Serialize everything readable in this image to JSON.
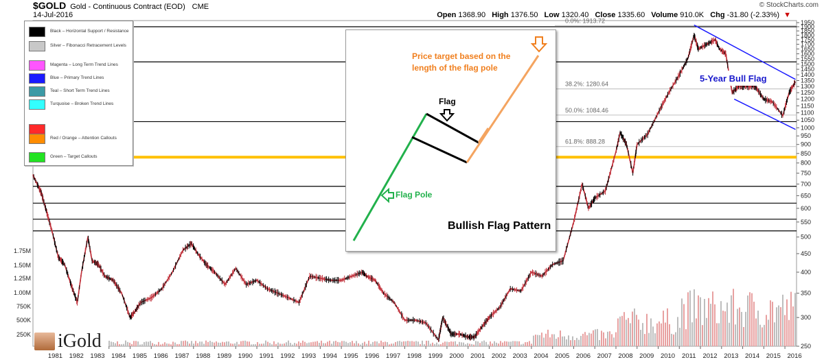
{
  "header": {
    "symbol": "$GOLD",
    "description": "Gold - Continuous Contract (EOD)",
    "exchange": "CME",
    "date": "14-Jul-2016",
    "brand": "© StockCharts.com",
    "ohlc": [
      {
        "label": "Open",
        "value": "1368.90"
      },
      {
        "label": "High",
        "value": "1376.50"
      },
      {
        "label": "Low",
        "value": "1320.40"
      },
      {
        "label": "Close",
        "value": "1335.60"
      },
      {
        "label": "Volume",
        "value": "910.0K"
      },
      {
        "label": "Chg",
        "value": "-31.80 (-2.33%)"
      }
    ]
  },
  "legend": [
    {
      "color": "#000000",
      "label": "Black – Horizontal Support / Resistance"
    },
    {
      "color": "#c8c8c8",
      "label": "Silver – Fibonacci Retracement Levels"
    },
    {
      "color": "#ff55ff",
      "label": "Magenta – Long Term Trend Lines"
    },
    {
      "color": "#1a1aff",
      "label": "Blue – Primary Trend Lines"
    },
    {
      "color": "#3c9aa6",
      "label": "Teal – Short Term Trend Lines"
    },
    {
      "color": "#33ffff",
      "label": "Turquoise – Broken Trend Lines"
    },
    {
      "color": "#ff2a2a",
      "label": "Red / Orange – Attention Callouts"
    },
    {
      "color": "#ff8c00",
      "label": "Orange"
    },
    {
      "color": "#22e322",
      "label": "Green – Target Callouts"
    }
  ],
  "logo": {
    "name": "iGold"
  },
  "inset": {
    "title": "Bullish Flag Pattern",
    "flag_label": "Flag",
    "pole_label": "Flag Pole",
    "target_label_1": "Price target based on the",
    "target_label_2": "length of the flag pole"
  },
  "annotations": {
    "bull_flag": "5-Year Bull Flag"
  },
  "chart_data": {
    "type": "line",
    "title": "$GOLD Gold - Continuous Contract (EOD) CME",
    "y_scale": "log",
    "ylim": [
      250,
      1950
    ],
    "y_ticks": [
      1950,
      1900,
      1850,
      1800,
      1750,
      1700,
      1650,
      1600,
      1550,
      1500,
      1450,
      1400,
      1350,
      1300,
      1250,
      1200,
      1150,
      1100,
      1050,
      1000,
      950,
      900,
      850,
      800,
      750,
      700,
      650,
      600,
      550,
      500,
      450,
      400,
      350,
      300,
      250
    ],
    "x_ticks": [
      "1981",
      "1982",
      "1983",
      "1984",
      "1985",
      "1986",
      "1987",
      "1988",
      "1989",
      "1990",
      "1991",
      "1992",
      "1993",
      "1994",
      "1995",
      "1996",
      "1997",
      "1998",
      "1999",
      "2000",
      "2001",
      "2002",
      "2003",
      "2004",
      "2005",
      "2006",
      "2007",
      "2008",
      "2009",
      "2010",
      "2011",
      "2012",
      "2013",
      "2014",
      "2015",
      "2016"
    ],
    "volume_ticks": [
      "1.75M",
      "1.50M",
      "1.25M",
      "1.00M",
      "750K",
      "500K",
      "250K"
    ],
    "fib_levels": [
      {
        "label": "0.0%: 1913.72",
        "value": 1913.72
      },
      {
        "label": "38.2%: 1280.64",
        "value": 1280.64
      },
      {
        "label": "50.0%: 1084.46",
        "value": 1084.46
      },
      {
        "label": "61.8%: 888.28",
        "value": 888.28
      }
    ],
    "support_levels": [
      1900,
      1520,
      1040,
      690,
      620,
      560,
      520
    ],
    "gold_level": 830,
    "series": [
      {
        "name": "Gold",
        "x": [
          1980.4,
          1980.6,
          1980.8,
          1981.0,
          1981.3,
          1981.6,
          1981.9,
          1982.2,
          1982.5,
          1982.7,
          1983.0,
          1983.2,
          1983.5,
          1983.8,
          1984.2,
          1984.6,
          1985.0,
          1985.2,
          1985.5,
          1986.0,
          1986.5,
          1987.0,
          1987.5,
          1987.9,
          1988.2,
          1988.6,
          1989.0,
          1989.5,
          1990.0,
          1990.5,
          1991.0,
          1991.5,
          1992.0,
          1992.5,
          1993.0,
          1993.5,
          1994.0,
          1994.5,
          1995.0,
          1995.5,
          1996.0,
          1996.2,
          1996.6,
          1997.0,
          1997.5,
          1998.0,
          1998.5,
          1999.0,
          1999.6,
          1999.8,
          2000.2,
          2000.6,
          2001.0,
          2001.3,
          2001.7,
          2002.0,
          2002.5,
          2003.0,
          2003.5,
          2004.0,
          2004.5,
          2005.0,
          2005.5,
          2006.0,
          2006.4,
          2006.7,
          2007.0,
          2007.5,
          2008.0,
          2008.2,
          2008.5,
          2008.8,
          2009.0,
          2009.5,
          2010.0,
          2010.5,
          2011.0,
          2011.4,
          2011.7,
          2011.9,
          2012.3,
          2012.7,
          2012.9,
          2013.2,
          2013.5,
          2013.8,
          2014.2,
          2014.6,
          2015.0,
          2015.4,
          2015.9,
          2016.2,
          2016.5
        ],
        "y": [
          740,
          700,
          660,
          600,
          520,
          440,
          420,
          370,
          330,
          400,
          500,
          430,
          420,
          390,
          380,
          350,
          300,
          310,
          330,
          340,
          360,
          400,
          460,
          480,
          450,
          420,
          400,
          370,
          410,
          370,
          380,
          360,
          350,
          340,
          330,
          390,
          385,
          380,
          380,
          390,
          400,
          390,
          380,
          350,
          330,
          295,
          295,
          290,
          260,
          300,
          270,
          270,
          265,
          265,
          285,
          300,
          320,
          360,
          355,
          400,
          390,
          420,
          430,
          550,
          700,
          600,
          640,
          670,
          860,
          970,
          900,
          750,
          900,
          960,
          1100,
          1250,
          1400,
          1550,
          1800,
          1650,
          1700,
          1750,
          1650,
          1600,
          1250,
          1300,
          1300,
          1300,
          1200,
          1180,
          1080,
          1250,
          1340
        ]
      }
    ],
    "trend_lines": [
      {
        "name": "upper",
        "from": [
          2011.7,
          1920
        ],
        "to": [
          2016.5,
          1360
        ]
      },
      {
        "name": "lower",
        "from": [
          2013.6,
          1200
        ],
        "to": [
          2016.5,
          990
        ]
      }
    ]
  }
}
